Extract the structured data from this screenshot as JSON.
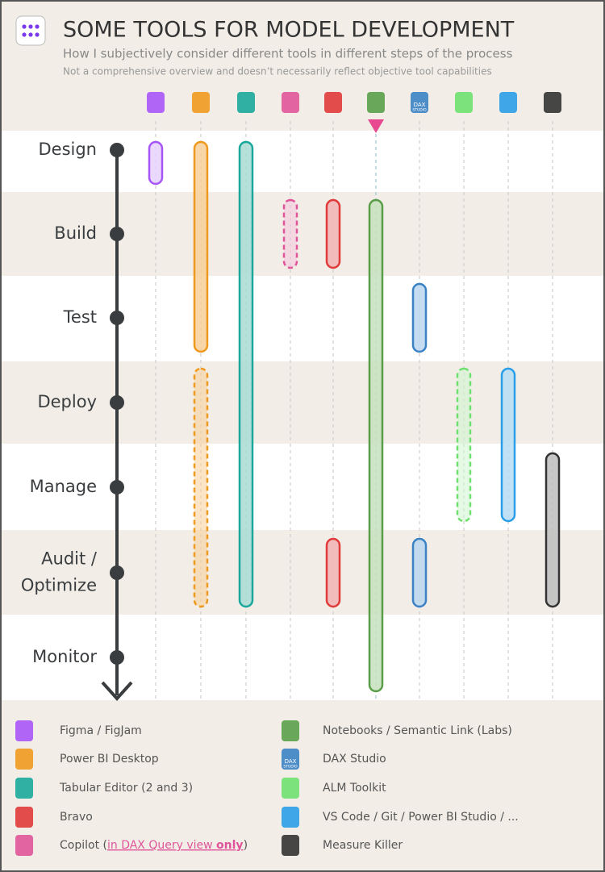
{
  "header": {
    "title": "SOME TOOLS FOR MODEL DEVELOPMENT",
    "subtitle": "How I subjectively consider different tools in different steps of the process",
    "note": "Not a comprehensive overview and doesn’t necessarily reflect objective tool capabilities"
  },
  "steps": [
    {
      "label": [
        "Design"
      ]
    },
    {
      "label": [
        "Build"
      ]
    },
    {
      "label": [
        "Test"
      ]
    },
    {
      "label": [
        "Deploy"
      ]
    },
    {
      "label": [
        "Manage"
      ]
    },
    {
      "label": [
        "Audit /",
        "Optimize"
      ]
    },
    {
      "label": [
        "Monitor"
      ]
    }
  ],
  "tools": [
    {
      "name": "Figma / FigJam",
      "color": "#a855f7",
      "fill": "#e6d2fb",
      "spans": [
        {
          "from": 0,
          "to": 0,
          "style": "solid"
        }
      ]
    },
    {
      "name": "Power BI Desktop",
      "color": "#ef9a1f",
      "fill": "#f7cf98",
      "spans": [
        {
          "from": 0,
          "to": 2,
          "style": "solid"
        },
        {
          "from": 3,
          "to": 5,
          "style": "dashed"
        }
      ]
    },
    {
      "name": "Tabular Editor (2 and 3)",
      "color": "#19a89b",
      "fill": "#a9dcd5",
      "spans": [
        {
          "from": 0,
          "to": 5,
          "style": "solid"
        }
      ]
    },
    {
      "name": "Copilot (",
      "link": "in DAX Query view ",
      "emphasis": "only",
      "suffix": ")",
      "color": "#e0559a",
      "fill": "#f4c5dc",
      "spans": [
        {
          "from": 1,
          "to": 1,
          "style": "dashed"
        }
      ]
    },
    {
      "name": "Bravo",
      "color": "#e03a3a",
      "fill": "#f1b3b3",
      "spans": [
        {
          "from": 1,
          "to": 1,
          "style": "solid"
        },
        {
          "from": 5,
          "to": 5,
          "style": "solid"
        }
      ]
    },
    {
      "name": "Notebooks / Semantic Link (Labs)",
      "color": "#5a9e4a",
      "fill": "#c7e0bd",
      "spans": [
        {
          "from": 1,
          "to": 6,
          "style": "solid"
        }
      ]
    },
    {
      "name": "DAX Studio",
      "icon_label": [
        "DAX",
        "STUDIO"
      ],
      "color": "#3b82c4",
      "fill": "#bbd6ee",
      "spans": [
        {
          "from": 2,
          "to": 2,
          "style": "solid"
        },
        {
          "from": 5,
          "to": 5,
          "style": "solid"
        }
      ]
    },
    {
      "name": "ALM Toolkit",
      "color": "#6fe06f",
      "fill": "#cdf5cd",
      "spans": [
        {
          "from": 3,
          "to": 4,
          "style": "dashed"
        }
      ]
    },
    {
      "name": "VS Code / Git / Power BI Studio / ...",
      "color": "#2b9ee8",
      "fill": "#b6dcf5",
      "spans": [
        {
          "from": 3,
          "to": 4,
          "style": "solid"
        }
      ]
    },
    {
      "name": "Measure Killer",
      "color": "#333333",
      "fill": "#bdbdbd",
      "spans": [
        {
          "from": 4,
          "to": 5,
          "style": "solid"
        }
      ]
    }
  ]
}
